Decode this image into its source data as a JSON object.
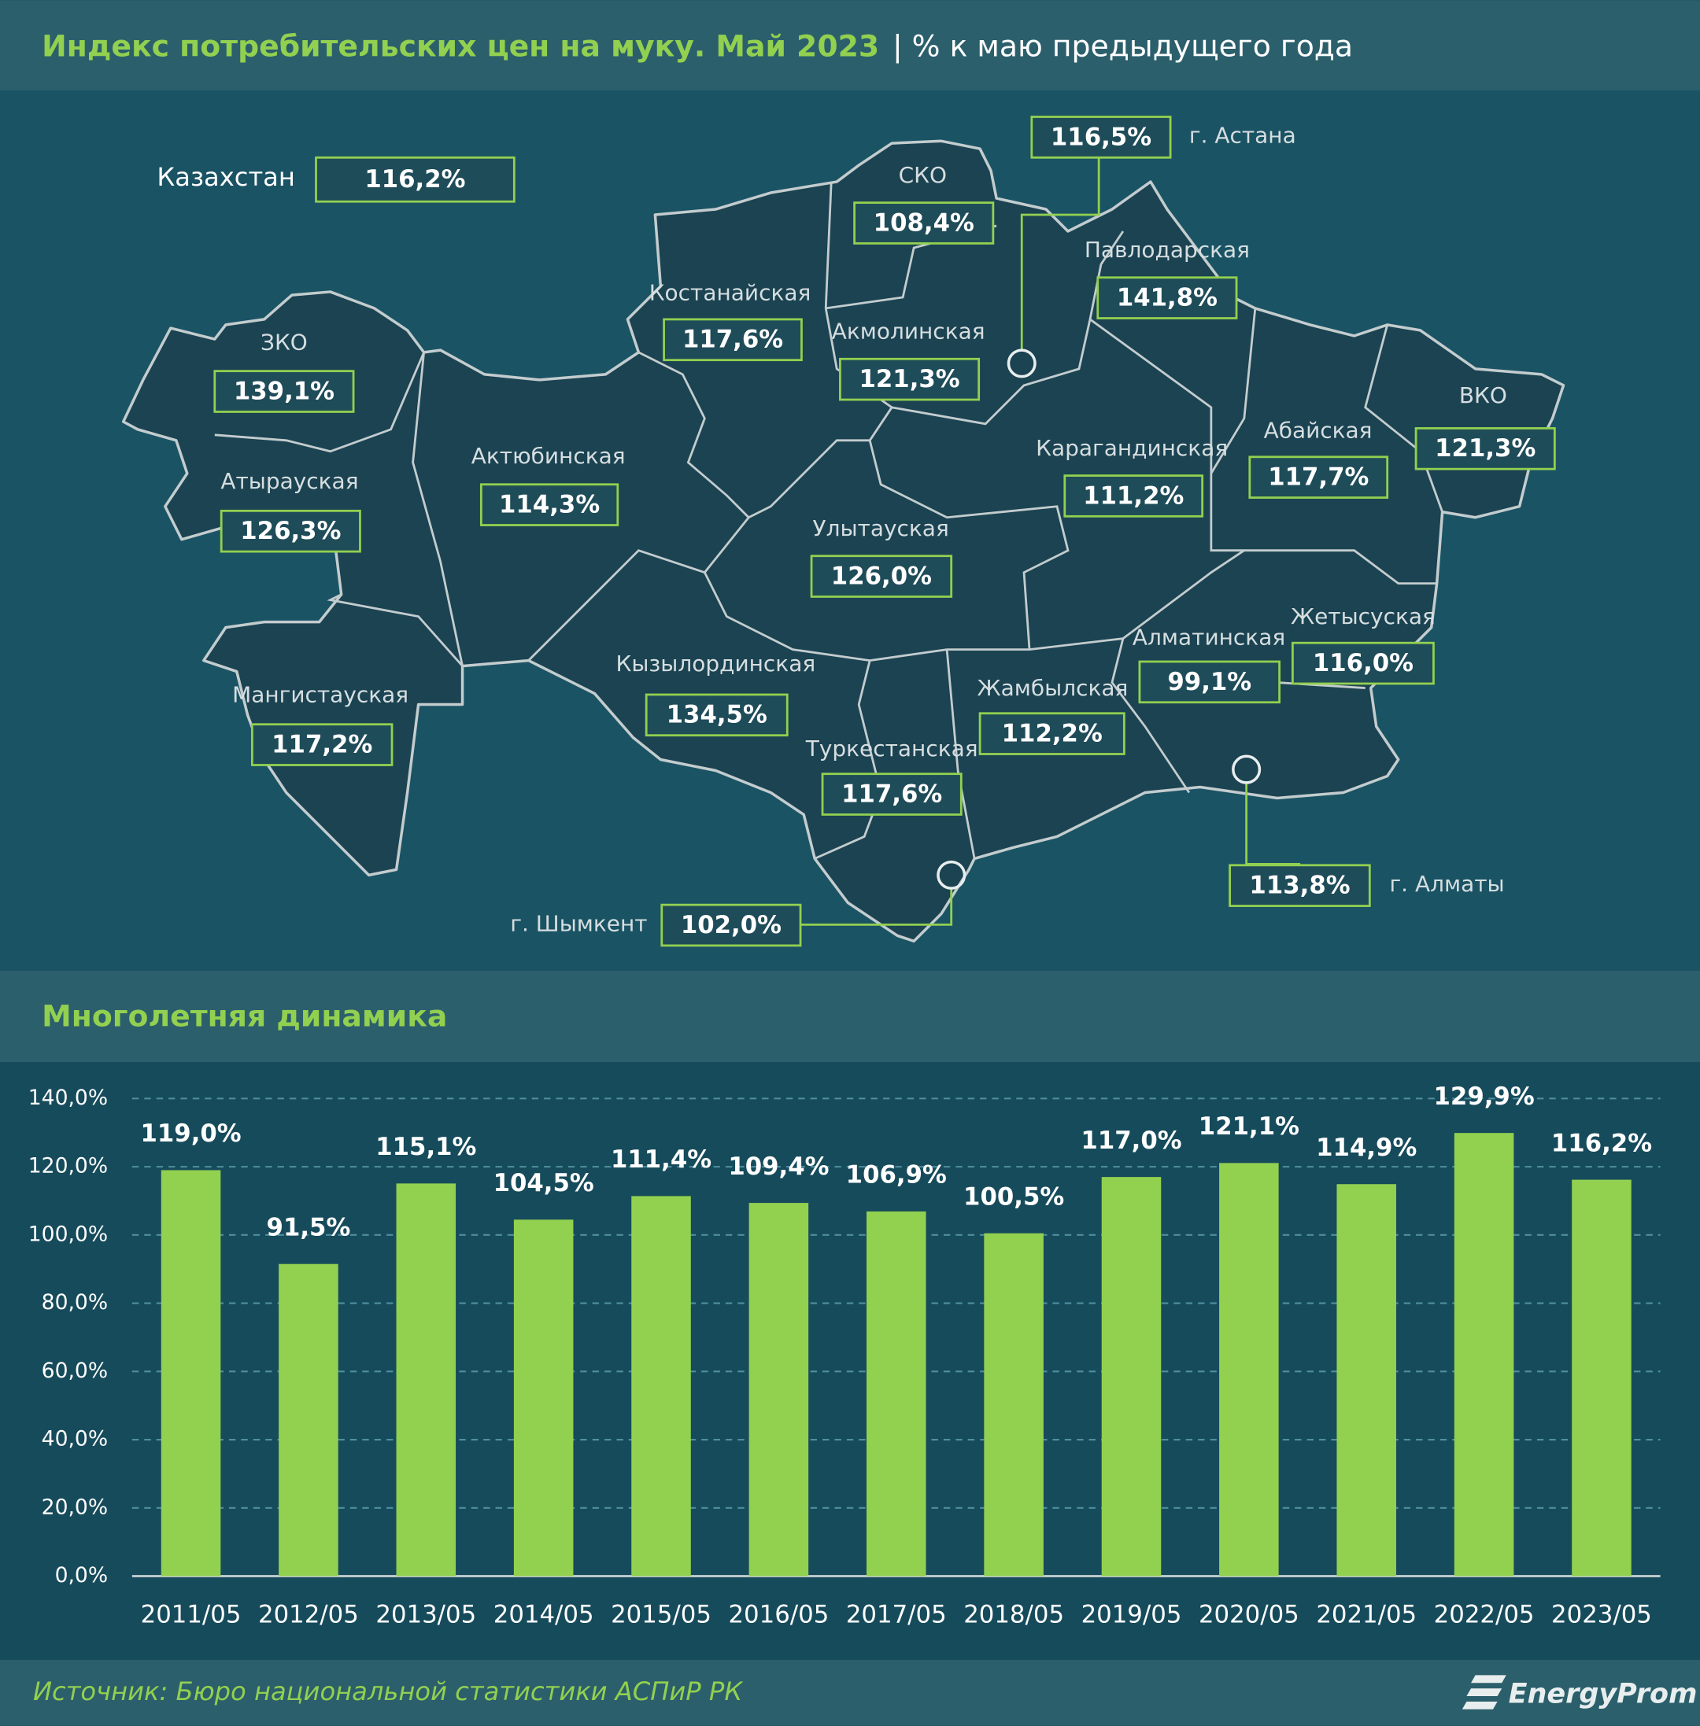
{
  "header": {
    "title": "Индекс потребительских цен на муку. Май 2023",
    "subtitle": "| % к маю предыдущего года"
  },
  "map": {
    "regions": [
      {
        "name": "Казахстан",
        "value": "116,2%"
      },
      {
        "name": "СКО",
        "value": "108,4%"
      },
      {
        "name": "г. Астана",
        "value": "116,5%"
      },
      {
        "name": "Павлодарская",
        "value": "141,8%"
      },
      {
        "name": "Костанайская",
        "value": "117,6%"
      },
      {
        "name": "Акмолинская",
        "value": "121,3%"
      },
      {
        "name": "ЗКО",
        "value": "139,1%"
      },
      {
        "name": "ВКО",
        "value": "121,3%"
      },
      {
        "name": "Абайская",
        "value": "117,7%"
      },
      {
        "name": "Карагандинская",
        "value": "111,2%"
      },
      {
        "name": "Актюбинская",
        "value": "114,3%"
      },
      {
        "name": "Атырауская",
        "value": "126,3%"
      },
      {
        "name": "Улытауская",
        "value": "126,0%"
      },
      {
        "name": "Жетысуская",
        "value": "116,0%"
      },
      {
        "name": "Алматинская",
        "value": "99,1%"
      },
      {
        "name": "Кызылординская",
        "value": "134,5%"
      },
      {
        "name": "Жамбылская",
        "value": "112,2%"
      },
      {
        "name": "Мангистауская",
        "value": "117,2%"
      },
      {
        "name": "Туркестанская",
        "value": "117,6%"
      },
      {
        "name": "г. Шымкент",
        "value": "102,0%"
      },
      {
        "name": "г. Алматы",
        "value": "113,8%"
      }
    ]
  },
  "chart_data": {
    "type": "bar",
    "title": "Многолетняя динамика",
    "categories": [
      "2011/05",
      "2012/05",
      "2013/05",
      "2014/05",
      "2015/05",
      "2016/05",
      "2017/05",
      "2018/05",
      "2019/05",
      "2020/05",
      "2021/05",
      "2022/05",
      "2023/05"
    ],
    "values": [
      119.0,
      91.5,
      115.1,
      104.5,
      111.4,
      109.4,
      106.9,
      100.5,
      117.0,
      121.1,
      114.9,
      129.9,
      116.2
    ],
    "value_labels": [
      "119,0%",
      "91,5%",
      "115,1%",
      "104,5%",
      "111,4%",
      "109,4%",
      "106,9%",
      "100,5%",
      "117,0%",
      "121,1%",
      "114,9%",
      "129,9%",
      "116,2%"
    ],
    "color": "#92d050",
    "ylim": [
      0,
      140
    ],
    "yticks": [
      {
        "value": 0,
        "label": "0,0%"
      },
      {
        "value": 20,
        "label": "20,0%"
      },
      {
        "value": 40,
        "label": "40,0%"
      },
      {
        "value": 60,
        "label": "60,0%"
      },
      {
        "value": 80,
        "label": "80,0%"
      },
      {
        "value": 100,
        "label": "100,0%"
      },
      {
        "value": 120,
        "label": "120,0%"
      },
      {
        "value": 140,
        "label": "140,0%"
      }
    ],
    "grid": true
  },
  "footer": {
    "source": "Источник: Бюро национальной статистики АСПиР РК",
    "logo": "EnergyProm"
  }
}
